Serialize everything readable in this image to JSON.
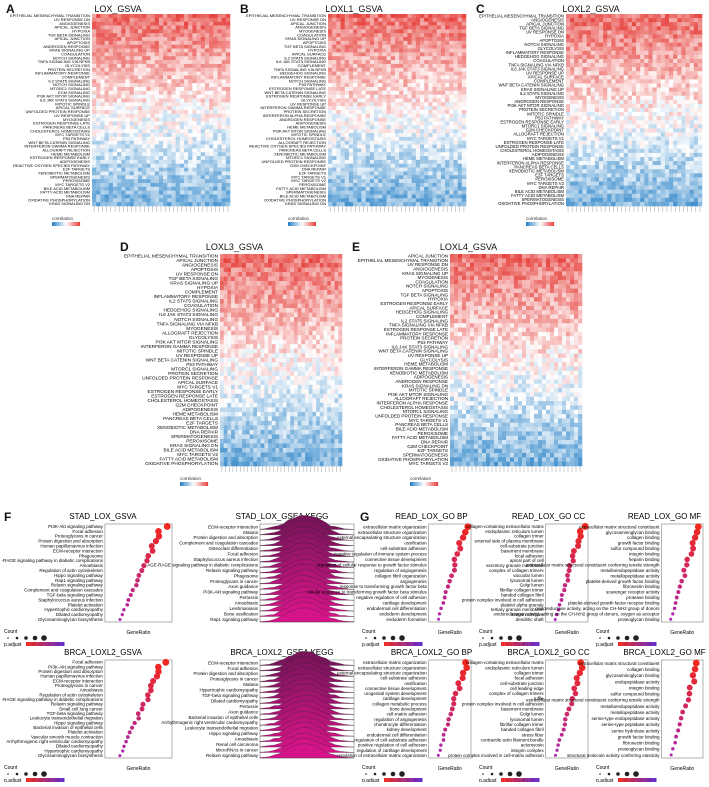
{
  "figure": {
    "heatmaps": [
      {
        "label": "A",
        "title": "LOX_GSVA",
        "legend": "correlation",
        "rows": [
          "EPITHELIAL MESENCHYMAL TRANSITION",
          "UV RESPONSE DN",
          "ANGIOGENESIS",
          "APICAL JUNCTION",
          "HYPOXIA",
          "TGF BETA SIGNALING",
          "APICAL JUNCTION",
          "APOPTOSIS",
          "ANDROGEN RESPONSE",
          "KRAS SIGNALING UP",
          "COAGULATION",
          "NOTCH SIGNALING",
          "TNFA SIGNALING VIA NFKB",
          "GLYCOLYSIS",
          "PROTEIN SECRETION",
          "INFLAMMATORY RESPONSE",
          "COMPLEMENT",
          "IL2 STAT5 SIGNALING",
          "NOTCH SIGNALING",
          "MTORC1 SIGNALING",
          "ECM SIGNALING",
          "PI3K AKT MTOR SIGNALING",
          "IL6 JAK STAT3 SIGNALING",
          "MITOTIC SPINDLE",
          "APICAL SURFACE",
          "UNFOLDED PROTEIN RESPONSE",
          "UV RESPONSE UP",
          "MYOGENESIS",
          "ESTROGEN RESPONSE LATE",
          "PANCREAS BETA CELLS",
          "CHOLESTEROL HOMEOSTASIS",
          "MYC TARGETS V1",
          "P53 PATHWAY",
          "WNT BETA CATENIN SIGNALING",
          "INTERFERON GAMMA RESPONSE",
          "ALLOGRAFT REJECTION",
          "HEME METABOLISM",
          "ESTROGEN RESPONSE EARLY",
          "ADIPOGENESIS",
          "REACTIVE OXYGEN SPECIES PATHWAY",
          "E2F TARGETS",
          "XENOBIOTIC METABOLISM",
          "SPERMATOGENESIS",
          "PEROXISOME",
          "MYC TARGETS V2",
          "BILE ACID METABOLISM",
          "FATTY ACID METABOLISM",
          "DNA REPAIR",
          "OXIDATIVE PHOSPHORYLATION",
          "KRAS SIGNALING DN"
        ]
      },
      {
        "label": "B",
        "title": "LOXL1_GSVA",
        "legend": "correlation",
        "rows": [
          "EPITHELIAL MESENCHYMAL TRANSITION",
          "UV RESPONSE DN",
          "APICAL JUNCTION",
          "ANGIOGENESIS",
          "MYOGENESIS",
          "COAGULATION",
          "KRAS SIGNALING UP",
          "APOPTOSIS",
          "TGF BETA SIGNALING",
          "HYPOXIA",
          "APICAL SURFACE",
          "IL2 STAT5 SIGNALING",
          "IL6 JAK STAT3 SIGNALING",
          "COMPLEMENT",
          "TNFA SIGNALING VIA NFKB",
          "HEDGEHOG SIGNALING",
          "INFLAMMATORY RESPONSE",
          "NOTCH SIGNALING",
          "P53 PATHWAY",
          "ESTROGEN RESPONSE LATE",
          "WNT BETA CATENIN SIGNALING",
          "ESTROGEN RESPONSE EARLY",
          "GLYCOLYSIS",
          "UV RESPONSE UP",
          "INTERFERON GAMMA RESPONSE",
          "PROTEIN SECRETION",
          "INTERFERON ALPHA RESPONSE",
          "ANDROGEN RESPONSE",
          "ADIPOGENESIS",
          "HEME METABOLISM",
          "PI3K AKT MTOR SIGNALING",
          "MITOTIC SPINDLE",
          "CHOLESTEROL HOMEOSTASIS",
          "ALLOGRAFT REJECTION",
          "REACTIVE OXYGEN SPECIES PATHWAY",
          "PANCREAS BETA CELLS",
          "XENOBIOTIC METABOLISM",
          "MTORC1 SIGNALING",
          "UNFOLDED PROTEIN RESPONSE",
          "G2M CHECKPOINT",
          "DNA REPAIR",
          "E2F TARGETS",
          "MYC TARGETS V1",
          "MYC TARGETS V2",
          "PEROXISOME",
          "FATTY ACID METABOLISM",
          "SPERMATOGENESIS",
          "BILE ACID METABOLISM",
          "OXIDATIVE PHOSPHORYLATION",
          "KRAS SIGNALING DN"
        ]
      },
      {
        "label": "C",
        "title": "LOXL2_GSVA",
        "legend": "correlation",
        "rows": [
          "EPITHELIAL MESENCHYMAL TRANSITION",
          "ANGIOGENESIS",
          "APICAL JUNCTION",
          "TGF BETA SIGNALING",
          "UV RESPONSE DN",
          "HYPOXIA",
          "APOPTOSIS",
          "NOTCH SIGNALING",
          "GLYCOLYSIS",
          "INFLAMMATORY RESPONSE",
          "HEDGEHOG SIGNALING",
          "COAGULATION",
          "TNFA SIGNALING VIA NFKB",
          "IL6 JAK STAT3 SIGNALING",
          "UV RESPONSE UP",
          "APICAL SURFACE",
          "COMPLEMENT",
          "WNT BETA CATENIN SIGNALING",
          "KRAS SIGNALING UP",
          "IL2 STAT5 SIGNALING",
          "MYOGENESIS",
          "ANDROGEN RESPONSE",
          "PI3K AKT MTOR SIGNALING",
          "PROTEIN SECRETION",
          "MITOTIC SPINDLE",
          "P53 PATHWAY",
          "ESTROGEN RESPONSE EARLY",
          "MTORC1 SIGNALING",
          "G2M CHECKPOINT",
          "ALLOGRAFT REJECTION",
          "MYC TARGETS V1",
          "ESTROGEN RESPONSE LATE",
          "UNFOLDED PROTEIN RESPONSE",
          "CHOLESTEROL HOMEOSTASIS",
          "ADIPOGENESIS",
          "HEME METABOLISM",
          "INTERFERON ALPHA RESPONSE",
          "PANCREAS BETA CELLS",
          "XENOBIOTIC METABOLISM",
          "E2F TARGETS",
          "PEROXISOME",
          "MYC TARGETS V2",
          "DNA REPAIR",
          "BILE ACID METABOLISM",
          "FATTY ACID METABOLISM",
          "SPERMATOGENESIS",
          "OXIDATIVE PHOSPHORYLATION"
        ]
      },
      {
        "label": "D",
        "title": "LOXL3_GSVA",
        "legend": "correlation",
        "rows": [
          "EPITHELIAL MESENCHYMAL TRANSITION",
          "APICAL JUNCTION",
          "ANGIOGENESIS",
          "APOPTOSIS",
          "UV RESPONSE DN",
          "TGF BETA SIGNALING",
          "KRAS SIGNALING UP",
          "HYPOXIA",
          "COMPLEMENT",
          "INFLAMMATORY RESPONSE",
          "IL2 STAT5 SIGNALING",
          "COAGULATION",
          "HEDGEHOG SIGNALING",
          "IL6 JAK STAT3 SIGNALING",
          "NOTCH SIGNALING",
          "TNFA SIGNALING VIA NFKB",
          "MYOGENESIS",
          "ALLOGRAFT REJECTION",
          "GLYCOLYSIS",
          "PI3K AKT MTOR SIGNALING",
          "INTERFERON GAMMA RESPONSE",
          "MITOTIC SPINDLE",
          "UV RESPONSE UP",
          "WNT BETA CATENIN SIGNALING",
          "P53 PATHWAY",
          "MTORC1 SIGNALING",
          "PROTEIN SECRETION",
          "UNFOLDED PROTEIN RESPONSE",
          "APICAL SURFACE",
          "MYC TARGETS V1",
          "ESTROGEN RESPONSE EARLY",
          "ESTROGEN RESPONSE LATE",
          "CHOLESTEROL HOMEOSTASIS",
          "G2M CHECKPOINT",
          "ADIPOGENESIS",
          "HEME METABOLISM",
          "PANCREAS BETA CELLS",
          "E2F TARGETS",
          "XENOBIOTIC METABOLISM",
          "DNA REPAIR",
          "SPERMATOGENESIS",
          "PEROXISOME",
          "KRAS SIGNALING DN",
          "BILE ACID METABOLISM",
          "MYC TARGETS V2",
          "FATTY ACID METABOLISM",
          "OXIDATIVE PHOSPHORYLATION"
        ]
      },
      {
        "label": "E",
        "title": "LOXL4_GSVA",
        "legend": "correlation",
        "rows": [
          "APICAL JUNCTION",
          "EPITHELIAL MESENCHYMAL TRANSITION",
          "UV RESPONSE DN",
          "ANGIOGENESIS",
          "KRAS SIGNALING UP",
          "MYOGENESIS",
          "COAGULATION",
          "NOTCH SIGNALING",
          "APOPTOSIS",
          "TGF BETA SIGNALING",
          "HYPOXIA",
          "ESTROGEN RESPONSE EARLY",
          "APICAL SURFACE",
          "HEDGEHOG SIGNALING",
          "COMPLEMENT",
          "IL2 STAT5 SIGNALING",
          "TNFA SIGNALING VIA NFKB",
          "ESTROGEN RESPONSE LATE",
          "INFLAMMATORY RESPONSE",
          "PROTEIN SECRETION",
          "P53 PATHWAY",
          "IL6 JAK STAT3 SIGNALING",
          "WNT BETA CATENIN SIGNALING",
          "UV RESPONSE UP",
          "GLYCOLYSIS",
          "HEME METABOLISM",
          "INTERFERON GAMMA RESPONSE",
          "XENOBIOTIC METABOLISM",
          "ADIPOGENESIS",
          "ANDROGEN RESPONSE",
          "KRAS SIGNALING DN",
          "MITOTIC SPINDLE",
          "PI3K AKT MTOR SIGNALING",
          "ALLOGRAFT REJECTION",
          "INTERFERON ALPHA RESPONSE",
          "CHOLESTEROL HOMEOSTASIS",
          "MTORC1 SIGNALING",
          "UNFOLDED PROTEIN RESPONSE",
          "MYC TARGETS V1",
          "PANCREAS BETA CELLS",
          "BILE ACID METABOLISM",
          "PEROXISOME",
          "FATTY ACID METABOLISM",
          "DNA REPAIR",
          "G2M CHECKPOINT",
          "E2F TARGETS",
          "SPERMATOGENESIS",
          "OXIDATIVE PHOSPHORYLATION",
          "MYC TARGETS V2"
        ]
      }
    ],
    "enrichment": [
      {
        "label": "F",
        "title": "STAD_LOX_GSVA",
        "kind": "dot",
        "xlabel": "GeneRatio",
        "count_label": "Count",
        "padj_label": "p.adjust",
        "terms": [
          "PI3K-Akt signaling pathway",
          "Focal adhesion",
          "Proteoglycans in cancer",
          "Protein digestion and absorption",
          "Human papillomavirus infection",
          "ECM-receptor interaction",
          "Phagosome",
          "AGE-RAGE signaling pathway in diabetic complications",
          "Amoebiasis",
          "Regulation of actin cytoskeleton",
          "Hippo signaling pathway",
          "Rap1 signaling pathway",
          "Relaxin signaling pathway",
          "Complement and coagulation cascades",
          "TGF-beta signaling pathway",
          "Staphylococcus aureus infection",
          "Platelet activation",
          "Hypertrophic cardiomyopathy",
          "Dilated cardiomyopathy",
          "Glycosaminoglycan biosynthesis"
        ]
      },
      {
        "label": "",
        "title": "STAD_LOX_GSEA KEGG",
        "kind": "ridge",
        "terms": [
          "ECM-receptor interaction",
          "Malaria",
          "Protein digestion and absorption",
          "Complement and coagulation cascades",
          "Osteoclast differentiation",
          "Focal adhesion",
          "Staphylococcus aureus infection",
          "AGE-RAGE signaling pathway in diabetic complications",
          "Relaxin signaling pathway",
          "Phagosome",
          "Proteoglycans in cancer",
          "Axon guidance",
          "PI3K-Akt signaling pathway",
          "Pertussis",
          "Amoebiasis",
          "Leishmaniasis",
          "Bone ossification",
          "Rap1 signaling pathway"
        ]
      },
      {
        "label": "G",
        "title": "READ_LOX_GO BP",
        "kind": "dot",
        "xlabel": "GeneRatio",
        "count_label": "Count",
        "padj_label": "p.adjust",
        "terms": [
          "extracellular matrix organization",
          "extracellular structure organization",
          "external encapsulating structure organization",
          "ossification",
          "cell-substrate adhesion",
          "negative regulation of immune system process",
          "connective tissue development",
          "regulation of cellular response to growth factor stimulus",
          "regulation of angiogenesis",
          "collagen fibril organization",
          "angiogenesis",
          "response to transforming growth factor beta",
          "cellular response to transforming growth factor beta stimulus",
          "negative regulation of cell adhesion",
          "cartilage development",
          "endodermal cell differentiation",
          "endoderm development",
          "endoderm formation"
        ]
      },
      {
        "label": "",
        "title": "READ_LOX_GO CC",
        "kind": "dot",
        "xlabel": "GeneRatio",
        "count_label": "Count",
        "padj_label": "p.adjust",
        "terms": [
          "collagen-containing extracellular matrix",
          "endoplasmic reticulum lumen",
          "collagen trimer",
          "external side of plasma membrane",
          "cell-substrate junction",
          "basement membrane",
          "focal adhesion",
          "apical part of cell",
          "secretory granule membrane",
          "complex of collagen trimers",
          "vacuolar lumen",
          "lysosomal lumen",
          "Golgi lumen",
          "fibrillar collagen trimer",
          "banded collagen fibril",
          "protein complex involved in cell adhesion",
          "platelet alpha granule",
          "tertiary granule membrane",
          "integrin complex",
          "dendritic shaft"
        ]
      },
      {
        "label": "",
        "title": "READ_LOX_GO MF",
        "kind": "dot",
        "xlabel": "GeneRatio",
        "count_label": "Count",
        "padj_label": "p.adjust",
        "terms": [
          "extracellular matrix structural constituent",
          "glycosaminoglycan binding",
          "collagen binding",
          "growth factor binding",
          "sulfur compound binding",
          "integrin binding",
          "heparin binding",
          "extracellular matrix structural constituent conferring tensile strength",
          "metalloendopeptidase activity",
          "metallopeptidase activity",
          "platelet-derived growth factor binding",
          "fibronectin binding",
          "scavenger receptor activity",
          "protease binding",
          "platelet-derived growth factor receptor binding",
          "oxidoreductase activity, acting on the CH-NH2 group of donors",
          "oxidoreductase activity, acting on the CH-NH2 group of donors, oxygen as acceptor",
          "proteoglycan binding"
        ]
      },
      {
        "label": "",
        "title": "BRCA_LOXL2_GSVA",
        "kind": "dot",
        "xlabel": "GeneRatio",
        "count_label": "Count",
        "padj_label": "p.adjust",
        "terms": [
          "Focal adhesion",
          "PI3K-Akt signaling pathway",
          "Protein digestion and absorption",
          "Human papillomavirus infection",
          "ECM-receptor interaction",
          "Proteoglycans in cancer",
          "Amoebiasis",
          "Regulation of actin cytoskeleton",
          "AGE-RAGE signaling pathway in diabetic complications",
          "Relaxin signaling pathway",
          "Small cell lung cancer",
          "TGF-beta signaling pathway",
          "Leukocyte transendothelial migration",
          "Hippo signaling pathway",
          "Bacterial invasion of epithelial cells",
          "Platelet activation",
          "Vascular smooth muscle contraction",
          "Arrhythmogenic right ventricular cardiomyopathy",
          "Dilated cardiomyopathy",
          "Hypertrophic cardiomyopathy",
          "Glycosaminoglycan biosynthesis"
        ]
      },
      {
        "label": "",
        "title": "BRCA_LOXL2_GSEA KEGG",
        "kind": "ridge",
        "terms": [
          "ECM-receptor interaction",
          "Focal adhesion",
          "Protein digestion and absorption",
          "Proteoglycans in cancer",
          "Malaria",
          "Hypertrophic cardiomyopathy",
          "TGF-beta signaling pathway",
          "Dilated cardiomyopathy",
          "Pertussis",
          "Axon guidance",
          "Bacterial invasion of epithelial cells",
          "Arrhythmogenic right ventricular cardiomyopathy",
          "Leukocyte transendothelial migration",
          "Hippo signaling pathway",
          "Amoebiasis",
          "Renal cell carcinoma",
          "MicroRNAs in cancer",
          "Relaxin signaling pathway"
        ]
      },
      {
        "label": "",
        "title": "BRCA_LOXL2_GO BP",
        "kind": "dot",
        "xlabel": "GeneRatio",
        "count_label": "Count",
        "padj_label": "p.adjust",
        "terms": [
          "extracellular matrix organization",
          "extracellular structure organization",
          "external encapsulating structure organization",
          "cell-substrate adhesion",
          "ossification",
          "connective tissue development",
          "urogenital system development",
          "cartilage development",
          "collagen metabolic process",
          "bone development",
          "cell-matrix adhesion",
          "regulation of angiogenesis",
          "chondrocyte differentiation",
          "kidney development",
          "endodermal cell differentiation",
          "regulation of cell-substrate adhesion",
          "positive regulation of cell adhesion",
          "regulation of cartilage development",
          "regulation of extracellular matrix organization"
        ]
      },
      {
        "label": "",
        "title": "BRCA_LOXL2_GO CC",
        "kind": "dot",
        "xlabel": "GeneRatio",
        "count_label": "Count",
        "padj_label": "p.adjust",
        "terms": [
          "collagen-containing extracellular matrix",
          "endoplasmic reticulum lumen",
          "collagen trimer",
          "focal adhesion",
          "cell-substrate junction",
          "cell leading edge",
          "complex of collagen trimers",
          "ruffle",
          "protein complex involved in cell adhesion",
          "basement membrane",
          "Golgi lumen",
          "lysosomal lumen",
          "fibrillar collagen trimer",
          "banded collagen fibril",
          "stress fiber",
          "contractile actin filament bundle",
          "actomyosin",
          "integrin complex",
          "protein complex involved in cell-matrix adhesion"
        ]
      },
      {
        "label": "",
        "title": "BRCA_LOXL2_GO MF",
        "kind": "dot",
        "xlabel": "GeneRatio",
        "count_label": "Count",
        "padj_label": "p.adjust",
        "terms": [
          "extracellular matrix structural constituent",
          "collagen binding",
          "glycosaminoglycan binding",
          "endopeptidase activity",
          "integrin binding",
          "sulfur compound binding",
          "extracellular matrix structural constituent conferring tensile strength",
          "metalloendopeptidase activity",
          "metallopeptidase activity",
          "serine-type endopeptidase activity",
          "serine-type peptidase activity",
          "serine hydrolase activity",
          "growth factor binding",
          "fibronectin binding",
          "proteoglycan binding",
          "structural molecule activity conferring elasticity"
        ]
      }
    ]
  }
}
